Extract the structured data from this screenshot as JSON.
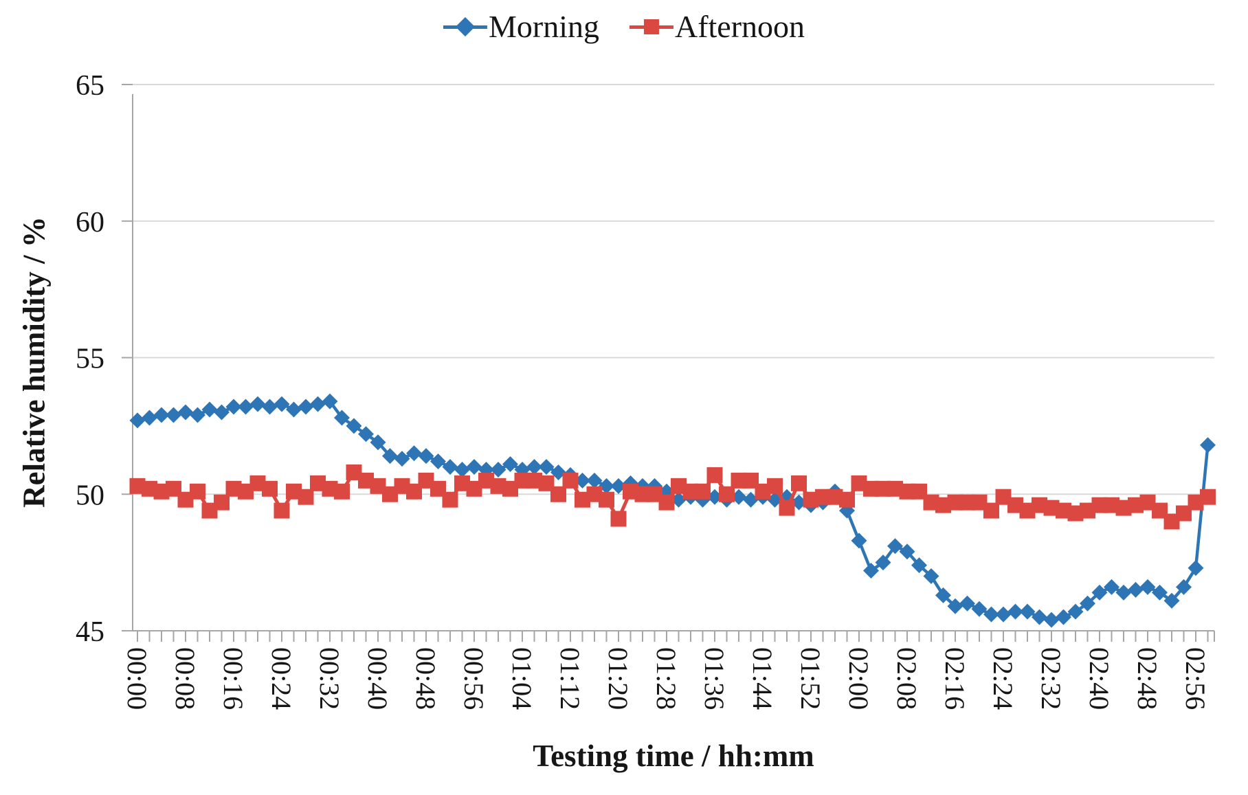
{
  "figure": {
    "kind": "scientific line chart",
    "background": "#ffffff"
  },
  "legend": {
    "position": "top-center",
    "items": [
      {
        "label": "Morning",
        "color": "#2E75B6",
        "marker": "diamond"
      },
      {
        "label": "Afternoon",
        "color": "#DB4842",
        "marker": "square"
      }
    ]
  },
  "titles": {
    "x": "Testing time / hh:mm",
    "y": "Relative humidity / %"
  },
  "colors": {
    "axis": "#A6A6A6",
    "grid": "#D9D9D9",
    "text": "#161616"
  },
  "chart_data": {
    "type": "line",
    "title": "",
    "xlabel": "Testing time / hh:mm",
    "ylabel": "Relative humidity / %",
    "ylim": [
      45,
      65
    ],
    "y_ticks": [
      45,
      50,
      55,
      60,
      65
    ],
    "x_tick_every_min": 2,
    "x_label_every_min": 8,
    "grid": "horizontal",
    "legend_position": "top",
    "x": [
      "00:00",
      "00:02",
      "00:04",
      "00:06",
      "00:08",
      "00:10",
      "00:12",
      "00:14",
      "00:16",
      "00:18",
      "00:20",
      "00:22",
      "00:24",
      "00:26",
      "00:28",
      "00:30",
      "00:32",
      "00:34",
      "00:36",
      "00:38",
      "00:40",
      "00:42",
      "00:44",
      "00:46",
      "00:48",
      "00:50",
      "00:52",
      "00:54",
      "00:56",
      "00:58",
      "01:00",
      "01:02",
      "01:04",
      "01:06",
      "01:08",
      "01:10",
      "01:12",
      "01:14",
      "01:16",
      "01:18",
      "01:20",
      "01:22",
      "01:24",
      "01:26",
      "01:28",
      "01:30",
      "01:32",
      "01:34",
      "01:36",
      "01:38",
      "01:40",
      "01:42",
      "01:44",
      "01:46",
      "01:48",
      "01:50",
      "01:52",
      "01:54",
      "01:56",
      "01:58",
      "02:00",
      "02:02",
      "02:04",
      "02:06",
      "02:08",
      "02:10",
      "02:12",
      "02:14",
      "02:16",
      "02:18",
      "02:20",
      "02:22",
      "02:24",
      "02:26",
      "02:28",
      "02:30",
      "02:32",
      "02:34",
      "02:36",
      "02:38",
      "02:40",
      "02:42",
      "02:44",
      "02:46",
      "02:48",
      "02:50",
      "02:52",
      "02:54",
      "02:56",
      "02:58"
    ],
    "series": [
      {
        "name": "Morning",
        "color": "#2E75B6",
        "marker": "diamond",
        "values": [
          52.7,
          52.8,
          52.9,
          52.9,
          53.0,
          52.9,
          53.1,
          53.0,
          53.2,
          53.2,
          53.3,
          53.2,
          53.3,
          53.1,
          53.2,
          53.3,
          53.4,
          52.8,
          52.5,
          52.2,
          51.9,
          51.4,
          51.3,
          51.5,
          51.4,
          51.2,
          51.0,
          50.9,
          51.0,
          50.9,
          50.9,
          51.1,
          50.9,
          51.0,
          51.0,
          50.8,
          50.7,
          50.5,
          50.5,
          50.3,
          50.3,
          50.4,
          50.3,
          50.3,
          50.1,
          49.8,
          49.9,
          49.8,
          49.9,
          49.8,
          49.9,
          49.8,
          49.9,
          49.8,
          49.9,
          49.7,
          49.6,
          49.7,
          50.1,
          49.4,
          48.3,
          47.2,
          47.5,
          48.1,
          47.9,
          47.4,
          47.0,
          46.3,
          45.9,
          46.0,
          45.8,
          45.6,
          45.6,
          45.7,
          45.7,
          45.5,
          45.4,
          45.5,
          45.7,
          46.0,
          46.4,
          46.6,
          46.4,
          46.5,
          46.6,
          46.4,
          46.1,
          46.6,
          47.3,
          51.8
        ]
      },
      {
        "name": "Afternoon",
        "color": "#DB4842",
        "marker": "square",
        "values": [
          50.3,
          50.2,
          50.1,
          50.2,
          49.8,
          50.1,
          49.4,
          49.7,
          50.2,
          50.1,
          50.4,
          50.2,
          49.4,
          50.1,
          49.9,
          50.4,
          50.2,
          50.1,
          50.8,
          50.5,
          50.3,
          50.0,
          50.3,
          50.1,
          50.5,
          50.2,
          49.8,
          50.4,
          50.2,
          50.5,
          50.3,
          50.2,
          50.5,
          50.5,
          50.4,
          50.0,
          50.5,
          49.8,
          50.0,
          49.8,
          49.1,
          50.1,
          50.0,
          50.0,
          49.7,
          50.3,
          50.1,
          50.1,
          50.7,
          50.0,
          50.5,
          50.5,
          50.1,
          50.3,
          49.5,
          50.4,
          49.8,
          49.9,
          49.9,
          49.8,
          50.4,
          50.2,
          50.2,
          50.2,
          50.1,
          50.1,
          49.7,
          49.6,
          49.7,
          49.7,
          49.7,
          49.4,
          49.9,
          49.6,
          49.4,
          49.6,
          49.5,
          49.4,
          49.3,
          49.4,
          49.6,
          49.6,
          49.5,
          49.6,
          49.7,
          49.4,
          49.0,
          49.3,
          49.7,
          49.9
        ]
      }
    ]
  }
}
